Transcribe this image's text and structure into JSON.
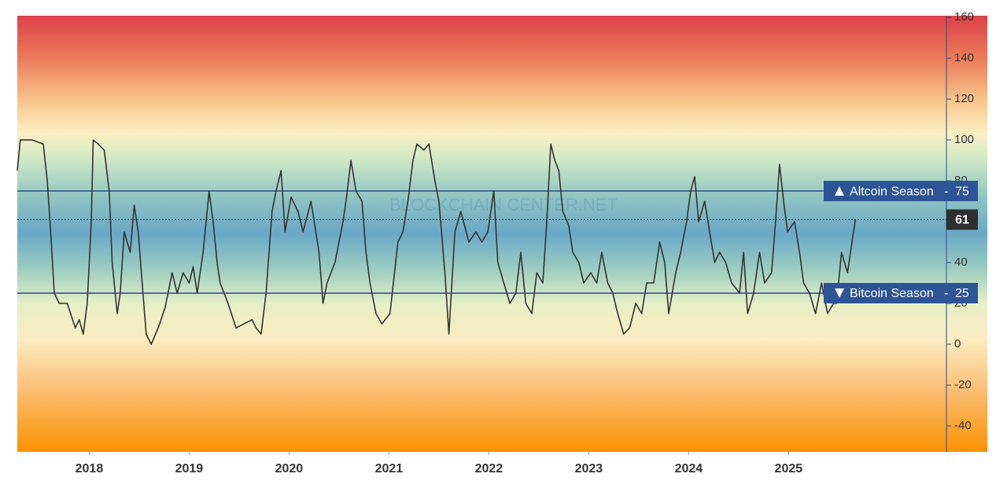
{
  "chart_data": {
    "type": "line",
    "color": "#333333",
    "watermark": "BLOCKCHAIN CENTER.NET",
    "x": [
      2017.28,
      2017.31,
      2017.43,
      2017.54,
      2017.58,
      2017.62,
      2017.65,
      2017.7,
      2017.78,
      2017.86,
      2017.9,
      2017.94,
      2017.98,
      2018.02,
      2018.04,
      2018.09,
      2018.15,
      2018.2,
      2018.23,
      2018.28,
      2018.31,
      2018.35,
      2018.41,
      2018.45,
      2018.49,
      2018.53,
      2018.57,
      2018.62,
      2018.69,
      2018.76,
      2018.83,
      2018.88,
      2018.94,
      2019.0,
      2019.04,
      2019.08,
      2019.14,
      2019.2,
      2019.24,
      2019.28,
      2019.31,
      2019.39,
      2019.47,
      2019.55,
      2019.63,
      2019.67,
      2019.72,
      2019.77,
      2019.83,
      2019.87,
      2019.92,
      2019.96,
      2020.02,
      2020.09,
      2020.14,
      2020.22,
      2020.3,
      2020.34,
      2020.38,
      2020.46,
      2020.54,
      2020.57,
      2020.62,
      2020.67,
      2020.73,
      2020.77,
      2020.81,
      2020.87,
      2020.93,
      2021.01,
      2021.09,
      2021.14,
      2021.19,
      2021.24,
      2021.28,
      2021.35,
      2021.4,
      2021.46,
      2021.5,
      2021.56,
      2021.6,
      2021.66,
      2021.72,
      2021.8,
      2021.87,
      2021.93,
      2021.99,
      2022.05,
      2022.09,
      2022.15,
      2022.21,
      2022.27,
      2022.32,
      2022.37,
      2022.43,
      2022.48,
      2022.54,
      2022.58,
      2022.62,
      2022.66,
      2022.7,
      2022.74,
      2022.8,
      2022.84,
      2022.9,
      2022.95,
      2023.02,
      2023.08,
      2023.13,
      2023.19,
      2023.24,
      2023.29,
      2023.35,
      2023.41,
      2023.47,
      2023.53,
      2023.58,
      2023.65,
      2023.71,
      2023.76,
      2023.8,
      2023.87,
      2023.92,
      2023.98,
      2024.02,
      2024.06,
      2024.1,
      2024.16,
      2024.21,
      2024.26,
      2024.31,
      2024.37,
      2024.43,
      2024.51,
      2024.55,
      2024.59,
      2024.65,
      2024.71,
      2024.76,
      2024.83,
      2024.87,
      2024.91,
      2024.95,
      2024.99,
      2025.06,
      2025.11,
      2025.15,
      2025.21,
      2025.27,
      2025.33,
      2025.39,
      2025.45,
      2025.48,
      2025.53,
      2025.59,
      2025.65,
      2025.67
    ],
    "values": [
      85,
      100,
      100,
      98,
      80,
      50,
      25,
      20,
      20,
      8,
      12,
      5,
      20,
      60,
      100,
      98,
      95,
      75,
      40,
      15,
      25,
      55,
      45,
      68,
      55,
      30,
      5,
      0,
      8,
      18,
      35,
      25,
      35,
      30,
      38,
      25,
      45,
      75,
      60,
      40,
      30,
      20,
      8,
      10,
      12,
      8,
      5,
      25,
      65,
      75,
      85,
      55,
      72,
      65,
      55,
      70,
      45,
      20,
      30,
      40,
      60,
      70,
      90,
      75,
      70,
      45,
      30,
      15,
      10,
      15,
      50,
      55,
      70,
      90,
      98,
      95,
      98,
      80,
      70,
      35,
      5,
      55,
      65,
      50,
      55,
      50,
      55,
      75,
      40,
      30,
      20,
      25,
      45,
      20,
      15,
      35,
      30,
      60,
      98,
      90,
      85,
      65,
      58,
      45,
      40,
      30,
      35,
      30,
      45,
      30,
      25,
      15,
      5,
      8,
      20,
      15,
      30,
      30,
      50,
      40,
      15,
      35,
      45,
      60,
      75,
      82,
      60,
      70,
      55,
      40,
      45,
      40,
      30,
      25,
      45,
      15,
      25,
      45,
      30,
      35,
      60,
      88,
      70,
      55,
      60,
      45,
      30,
      25,
      15,
      30,
      15,
      20,
      20,
      45,
      35,
      55,
      61
    ],
    "annotations": [
      {
        "label": "Altcoin Season",
        "value": 75
      },
      {
        "label": "Bitcoin Season",
        "value": 25
      }
    ],
    "xlim": [
      2017.28,
      2026.58
    ],
    "xticks": [
      2018,
      2019,
      2020,
      2021,
      2022,
      2023,
      2024,
      2025
    ],
    "ylim": [
      -52.7,
      160.8
    ],
    "yticks": [
      -40,
      -20,
      0,
      20,
      40,
      60,
      80,
      100,
      120,
      140,
      160
    ]
  }
}
